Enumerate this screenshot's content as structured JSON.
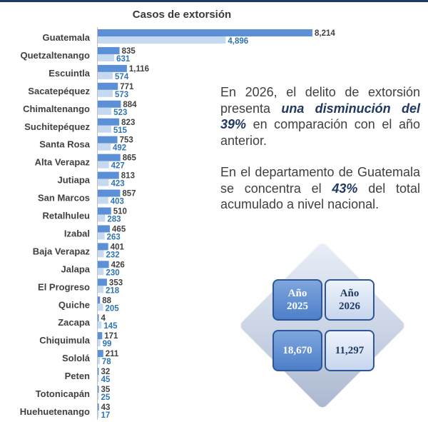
{
  "chart_data": {
    "type": "bar",
    "orientation": "horizontal",
    "title": "Casos de extorsión",
    "categories": [
      "Guatemala",
      "Quetzaltenango",
      "Escuintla",
      "Sacatepéquez",
      "Chimaltenango",
      "Suchitepéquez",
      "Santa Rosa",
      "Alta Verapaz",
      "Jutiapa",
      "San Marcos",
      "Retalhuleu",
      "Izabal",
      "Baja Verapaz",
      "Jalapa",
      "El Progreso",
      "Quiche",
      "Zacapa",
      "Chiquimula",
      "Sololá",
      "Peten",
      "Totonicapán",
      "Huehuetenango"
    ],
    "series": [
      {
        "values": [
          8214,
          835,
          1116,
          771,
          884,
          823,
          753,
          865,
          813,
          857,
          510,
          465,
          401,
          426,
          353,
          88,
          4,
          171,
          211,
          32,
          35,
          43
        ],
        "labels": [
          "8,214",
          "835",
          "1,116",
          "771",
          "884",
          "823",
          "753",
          "865",
          "813",
          "857",
          "510",
          "465",
          "401",
          "426",
          "353",
          "88",
          "4",
          "171",
          "211",
          "32",
          "35",
          "43"
        ],
        "color": "#5b8fd6"
      },
      {
        "values": [
          4896,
          631,
          574,
          573,
          523,
          515,
          492,
          427,
          423,
          403,
          283,
          263,
          232,
          230,
          218,
          205,
          145,
          99,
          78,
          45,
          25,
          17
        ],
        "labels": [
          "4,896",
          "631",
          "574",
          "573",
          "523",
          "515",
          "492",
          "427",
          "423",
          "403",
          "283",
          "263",
          "232",
          "230",
          "218",
          "205",
          "145",
          "99",
          "78",
          "45",
          "25",
          "17"
        ],
        "color": "#c5d9f1"
      }
    ],
    "xlim": [
      0,
      8214
    ],
    "grid": false,
    "legend": "none"
  },
  "narrative": {
    "p1_a": "En 2026, el delito de extorsión presenta ",
    "p1_em": "una disminución del 39%",
    "p1_b": " en comparación con el año anterior.",
    "p2_a": "En el departamento de Guatemala se concentra el ",
    "p2_em": "43%",
    "p2_b": " del total acumulado a nivel nacional."
  },
  "summary": {
    "header_2025": "Año\n2025",
    "header_2026": "Año\n2026",
    "total_2025": "18,670",
    "total_2026": "11,297"
  },
  "colors": {
    "bar_2025": "#5b8fd6",
    "bar_2026": "#c5d9f1",
    "label_2026": "#2e75b6",
    "accent_text": "#1f3864"
  }
}
